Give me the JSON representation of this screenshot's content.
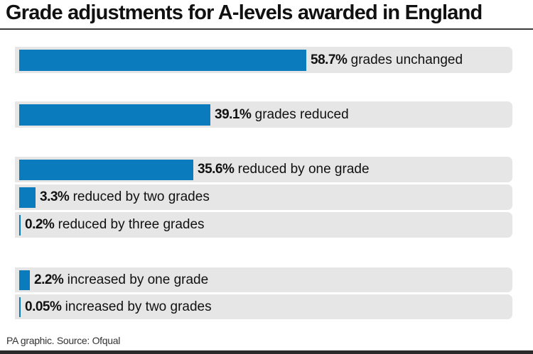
{
  "title": "Grade adjustments for A-levels awarded in England",
  "source": "PA graphic. Source: Ofqual",
  "colors": {
    "bar": "#0a7bbd",
    "track": "#e6e6e6",
    "rule": "#3a3a3a"
  },
  "rows": [
    {
      "pct": "58.7%",
      "text": "grades unchanged"
    },
    {
      "pct": "39.1%",
      "text": "grades reduced"
    },
    {
      "pct": "35.6%",
      "text": "reduced by one grade"
    },
    {
      "pct": "3.3%",
      "text": "reduced by two grades"
    },
    {
      "pct": "0.2%",
      "text": "reduced by three grades"
    },
    {
      "pct": "2.2%",
      "text": "increased by one grade"
    },
    {
      "pct": "0.05%",
      "text": "increased by two grades"
    }
  ],
  "chart_data": {
    "type": "bar",
    "orientation": "horizontal",
    "title": "Grade adjustments for A-levels awarded in England",
    "categories": [
      "grades unchanged",
      "grades reduced",
      "reduced by one grade",
      "reduced by two grades",
      "reduced by three grades",
      "increased by one grade",
      "increased by two grades"
    ],
    "values": [
      58.7,
      39.1,
      35.6,
      3.3,
      0.2,
      2.2,
      0.05
    ],
    "unit": "%",
    "xlabel": "",
    "ylabel": "",
    "xlim": [
      0,
      100
    ],
    "grid": false,
    "legend": null,
    "annotations": [
      "PA graphic. Source: Ofqual"
    ]
  }
}
